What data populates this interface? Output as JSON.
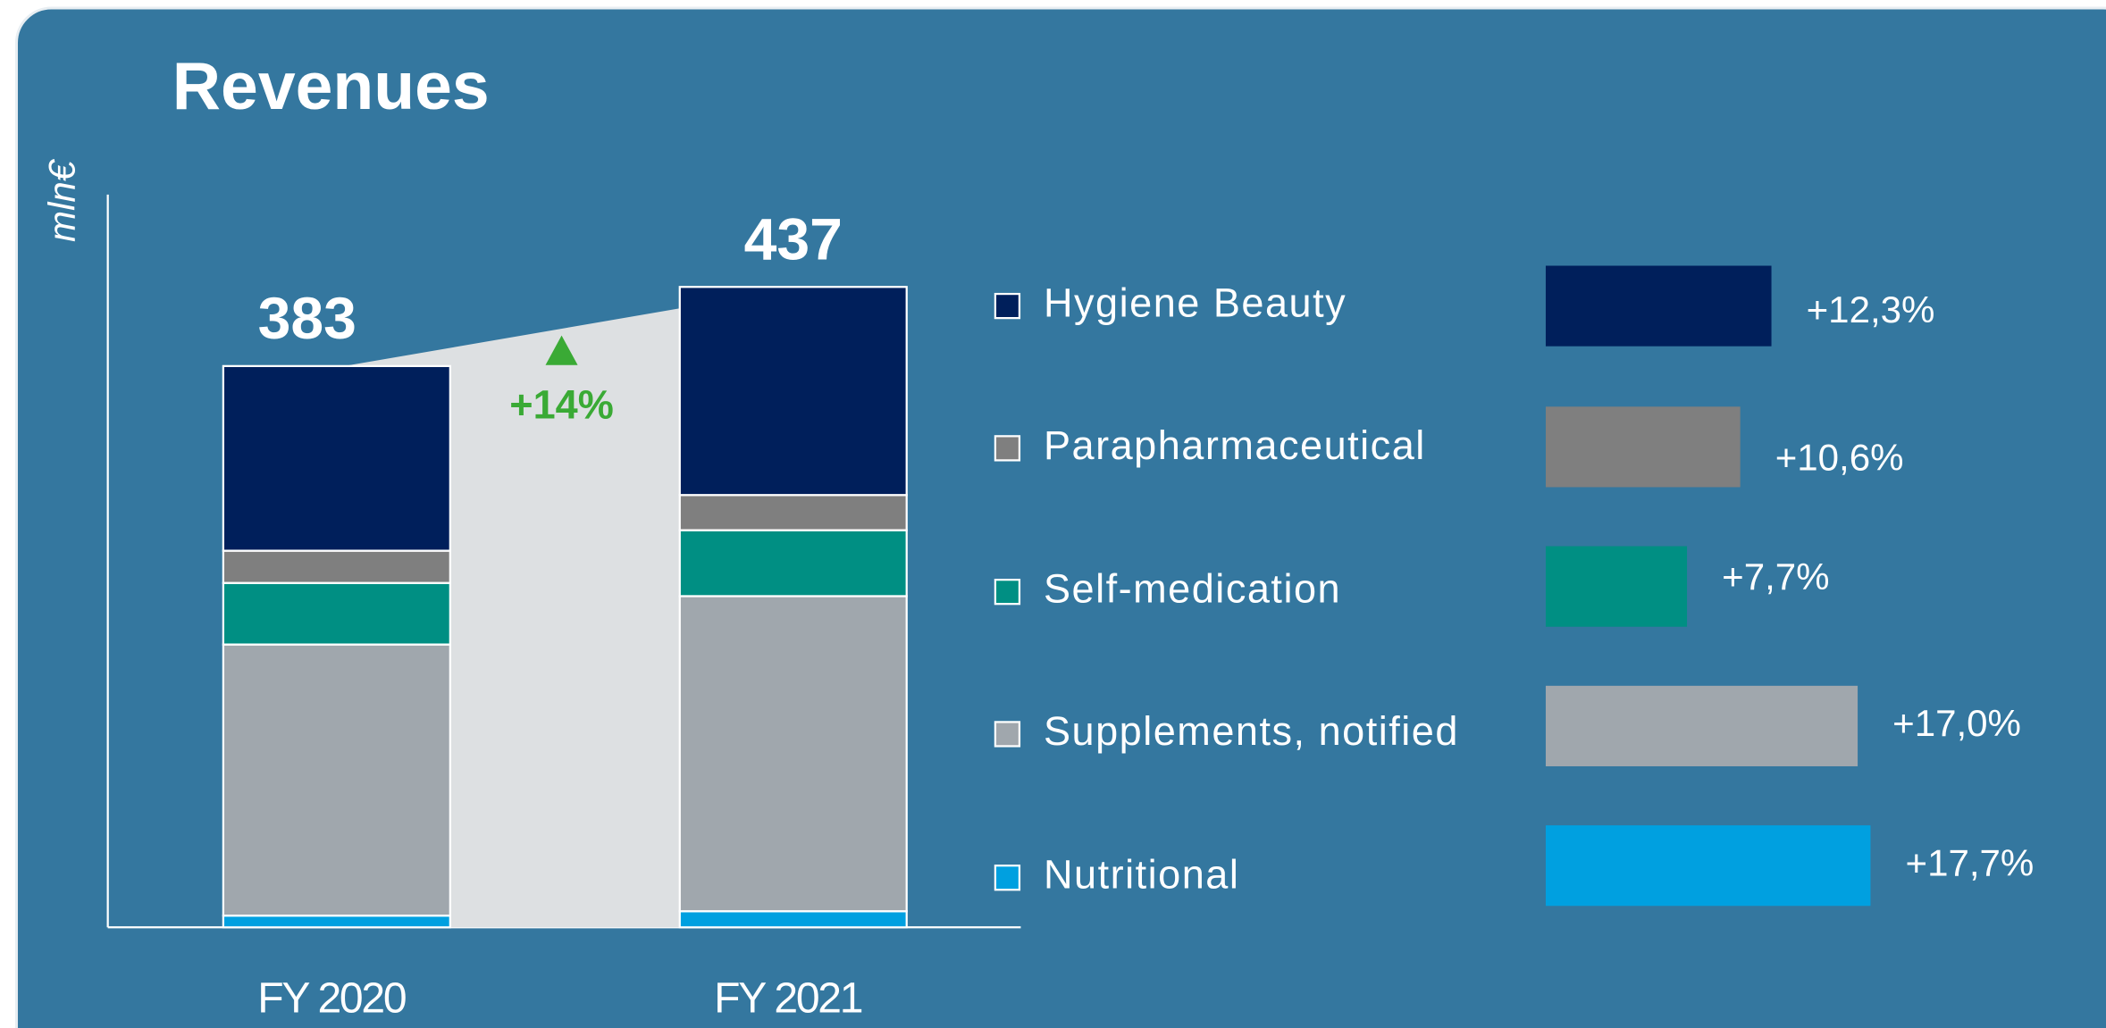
{
  "chart_data": [
    {
      "type": "stacked_bar",
      "title": "Revenues",
      "y_label": "mln€",
      "categories": [
        "FY 2020",
        "FY 2021"
      ],
      "series": [
        {
          "name": "Nutritional",
          "color": "#00a0e0",
          "values": [
            8,
            11
          ]
        },
        {
          "name": "Supplements, notified",
          "color": "#a0a7ad",
          "values": [
            185,
            215
          ]
        },
        {
          "name": "Self-medication",
          "color": "#008f83",
          "values": [
            42,
            45
          ]
        },
        {
          "name": "Parapharmaceutical",
          "color": "#7f7f7f",
          "values": [
            22,
            24
          ]
        },
        {
          "name": "Hygiene Beauty",
          "color": "#001f5b",
          "values": [
            126,
            142
          ]
        }
      ],
      "totals": [
        383,
        437
      ],
      "annotation": "+14%",
      "ylim": [
        0,
        500
      ]
    },
    {
      "type": "hbar",
      "values": [
        12.3,
        10.6,
        7.7,
        17.0,
        17.7
      ],
      "value_labels": [
        "+12,3%",
        "+10,6%",
        "+7,7%",
        "+17,0%",
        "+17,7%"
      ],
      "colors": [
        "#001f5b",
        "#7f7f7f",
        "#008f83",
        "#a0a7ad",
        "#00a0e0"
      ],
      "xlim": [
        0,
        18
      ]
    }
  ]
}
